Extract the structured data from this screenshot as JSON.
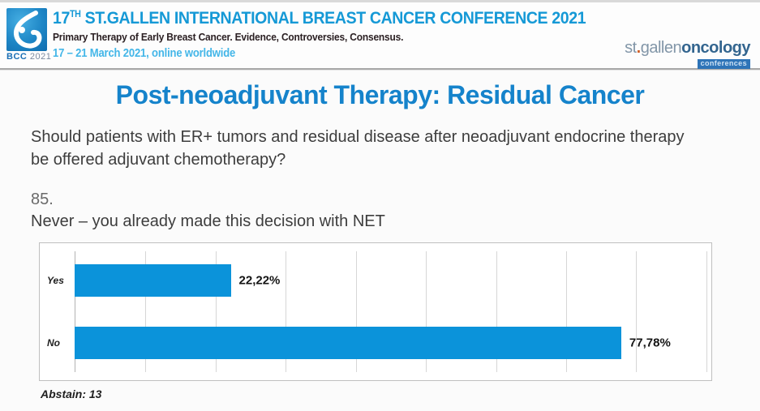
{
  "header": {
    "logo_bcc": "BCC",
    "logo_year": "2021",
    "title_prefix": "17",
    "title_sup": "TH",
    "title_main": " ST.GALLEN INTERNATIONAL BREAST CANCER CONFERENCE 2021",
    "subtitle": "Primary Therapy of Early Breast Cancer. Evidence, Controversies, Consensus.",
    "dates": "17 – 21 March 2021, online worldwide",
    "brand": {
      "st": "st",
      "dot": ".",
      "gallen": "gallen",
      "oncology": "oncology",
      "conferences": "conferences"
    }
  },
  "slide": {
    "title": "Post-neoadjuvant Therapy: Residual Cancer",
    "question": "Should patients with ER+ tumors and residual disease after neoadjuvant endocrine therapy be offered adjuvant chemotherapy?",
    "item_number": "85.",
    "statement": "Never – you already made this decision with NET",
    "abstain": "Abstain: 13"
  },
  "chart_data": {
    "type": "bar",
    "orientation": "horizontal",
    "title": "",
    "categories": [
      "Yes",
      "No"
    ],
    "values": [
      22.22,
      77.78
    ],
    "value_labels": [
      "22,22%",
      "77,78%"
    ],
    "xlim": [
      0,
      90.6
    ],
    "gridline_step": 10,
    "grid": true,
    "bar_color": "#0b93da",
    "legend_position": "none"
  },
  "colors": {
    "conference_title_blue": "#1599d6",
    "dates_blue": "#43b6e8",
    "slide_title_blue": "#1583cb",
    "bar_blue": "#0b93da",
    "brand_orange": "#d2622a",
    "brand_steel_blue": "#33658f"
  }
}
